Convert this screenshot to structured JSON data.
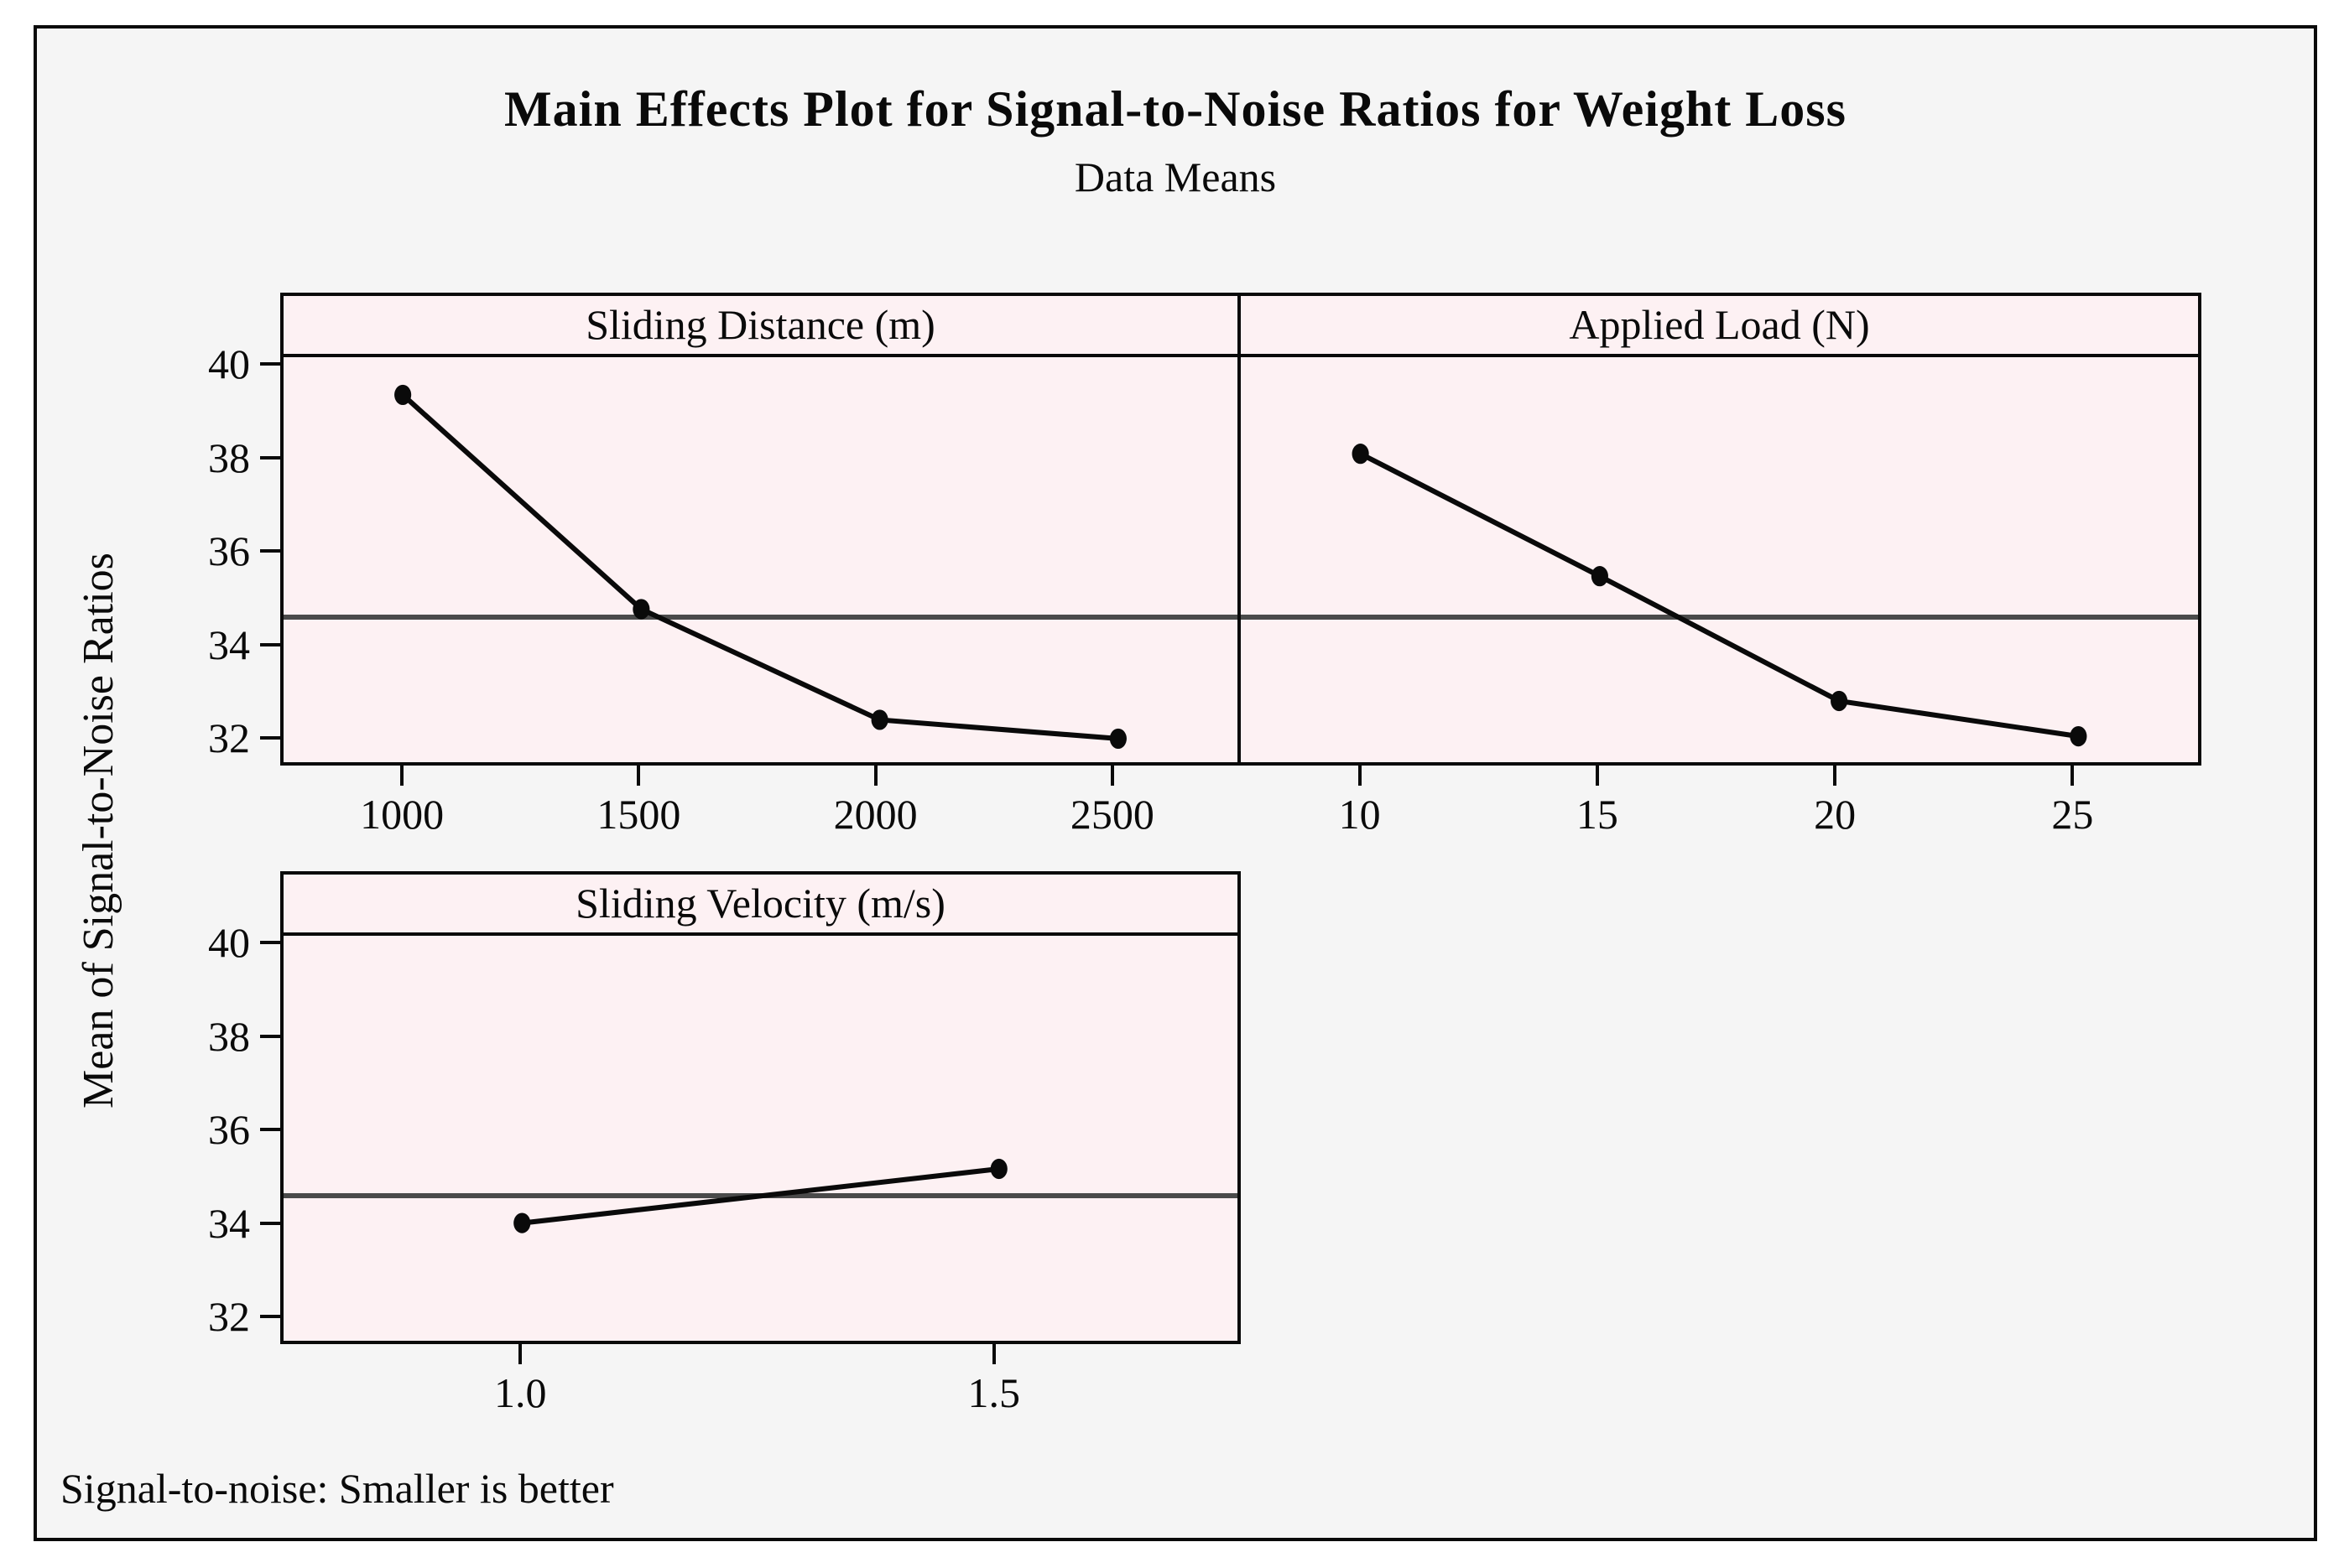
{
  "chart_data": {
    "type": "line",
    "title": "Main Effects Plot for Signal-to-Noise Ratios for Weight Loss",
    "subtitle": "Data Means",
    "ylabel": "Mean of Signal-to-Noise Ratios",
    "note": "Signal-to-noise: Smaller is better",
    "ylim": [
      31.55,
      40.15
    ],
    "y_ticks": [
      40,
      38,
      36,
      34,
      32
    ],
    "grand_mean": 34.63,
    "grid": "mean-reference-line-only",
    "legend": "none",
    "panels": [
      {
        "label": "Sliding Distance (m)",
        "categories": [
          "1000",
          "1500",
          "2000",
          "2500"
        ],
        "values": [
          39.35,
          34.8,
          32.45,
          32.05
        ],
        "show_y_axis": true
      },
      {
        "label": "Applied Load (N)",
        "categories": [
          "10",
          "15",
          "20",
          "25"
        ],
        "values": [
          38.1,
          35.5,
          32.85,
          32.1
        ],
        "show_y_axis": false
      },
      {
        "label": "Sliding Velocity (m/s)",
        "categories": [
          "1.0",
          "1.5"
        ],
        "values": [
          34.05,
          35.2
        ],
        "show_y_axis": true
      }
    ],
    "colors": {
      "figure_bg": "#f5f5f5",
      "panel_bg": "#fdf1f3",
      "border": "#0a0a0a",
      "data_line": "#0a0a0a",
      "mean_line": "#4a4a4a"
    }
  }
}
